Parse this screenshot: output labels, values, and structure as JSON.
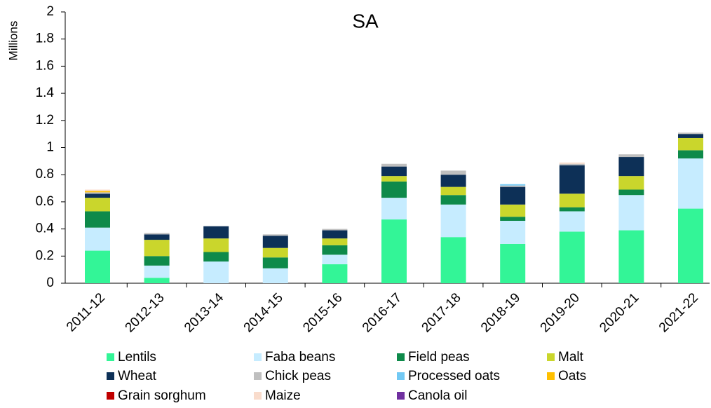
{
  "chart_data": {
    "type": "stacked_bar",
    "title": "SA",
    "ylabel": "Millions",
    "categories": [
      "2011-12",
      "2012-13",
      "2013-14",
      "2014-15",
      "2015-16",
      "2016-17",
      "2017-18",
      "2018-19",
      "2019-20",
      "2020-21",
      "2021-22"
    ],
    "series": [
      {
        "name": "Lentils",
        "color": "#33f597",
        "values": [
          0.24,
          0.04,
          0,
          0,
          0.14,
          0.47,
          0.34,
          0.29,
          0.38,
          0.39,
          0.55
        ]
      },
      {
        "name": "Faba beans",
        "color": "#c6ecff",
        "values": [
          0.17,
          0.09,
          0.16,
          0.11,
          0.07,
          0.16,
          0.24,
          0.17,
          0.15,
          0.26,
          0.37
        ]
      },
      {
        "name": "Field peas",
        "color": "#0e8a4a",
        "values": [
          0.12,
          0.07,
          0.07,
          0.08,
          0.07,
          0.12,
          0.07,
          0.03,
          0.03,
          0.04,
          0.06
        ]
      },
      {
        "name": "Malt",
        "color": "#cad62c",
        "values": [
          0.1,
          0.12,
          0.1,
          0.07,
          0.05,
          0.04,
          0.06,
          0.09,
          0.1,
          0.1,
          0.09
        ]
      },
      {
        "name": "Wheat",
        "color": "#0d3057",
        "values": [
          0.03,
          0.04,
          0.09,
          0.09,
          0.06,
          0.07,
          0.09,
          0.13,
          0.21,
          0.14,
          0.03
        ]
      },
      {
        "name": "Chick peas",
        "color": "#bfbfbf",
        "values": [
          0.01,
          0.01,
          0,
          0.01,
          0.01,
          0.02,
          0.03,
          0.01,
          0.01,
          0.02,
          0.01
        ]
      },
      {
        "name": "Processed oats",
        "color": "#72c9f4",
        "values": [
          0,
          0,
          0,
          0,
          0,
          0,
          0,
          0.01,
          0,
          0,
          0
        ]
      },
      {
        "name": "Oats",
        "color": "#ffc000",
        "values": [
          0.01,
          0,
          0,
          0,
          0,
          0,
          0,
          0,
          0,
          0,
          0
        ]
      },
      {
        "name": "Grain sorghum",
        "color": "#c00000",
        "values": [
          0,
          0,
          0,
          0,
          0,
          0,
          0,
          0,
          0,
          0,
          0
        ]
      },
      {
        "name": "Maize",
        "color": "#f9dccc",
        "values": [
          0.01,
          0,
          0,
          0,
          0,
          0,
          0,
          0,
          0.01,
          0,
          0
        ]
      },
      {
        "name": "Canola oil",
        "color": "#7030a0",
        "values": [
          0,
          0,
          0,
          0,
          0,
          0,
          0,
          0,
          0,
          0,
          0
        ]
      }
    ],
    "ylim": [
      0,
      2
    ],
    "yticks": [
      0,
      0.2,
      0.4,
      0.6,
      0.8,
      1,
      1.2,
      1.4,
      1.6,
      1.8,
      2
    ]
  }
}
